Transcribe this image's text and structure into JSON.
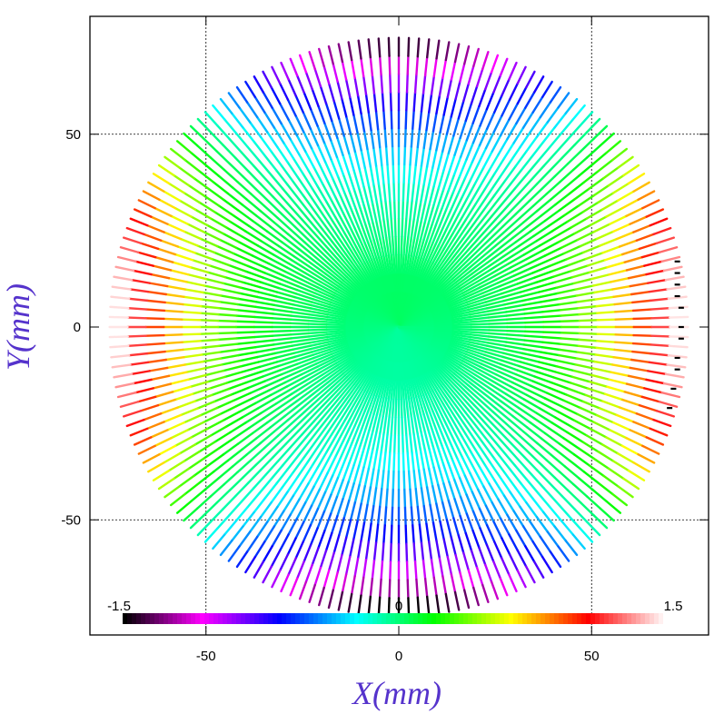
{
  "chart_data": {
    "type": "scatter",
    "title": "",
    "xlabel": "X(mm)",
    "ylabel": "Y(mm)",
    "xlim": [
      -80,
      80
    ],
    "ylim": [
      -80,
      80
    ],
    "grid": true,
    "colors": {
      "axis_title": "#5533cc",
      "grid": "#000000"
    },
    "xticks": [
      {
        "value": -50,
        "label": "-50"
      },
      {
        "value": 0,
        "label": "0"
      },
      {
        "value": 50,
        "label": "50"
      }
    ],
    "yticks": [
      {
        "value": 50,
        "label": "50"
      },
      {
        "value": 0,
        "label": "0"
      },
      {
        "value": -50,
        "label": "-50"
      }
    ],
    "pattern": {
      "description_free": true,
      "radial_line_count": 180,
      "max_radius": 75,
      "min_radius": 0
    },
    "colorbar": {
      "min": -1.5,
      "mid": 0,
      "max": 1.5,
      "min_label": "-1.5",
      "mid_label": "0",
      "max_label": "1.5",
      "stops": [
        "#000000",
        "#ff00ff",
        "#0000ff",
        "#00ffff",
        "#00ff00",
        "#ffff00",
        "#ff0000",
        "#ffffff"
      ]
    },
    "black_markers": [
      [
        72,
        17
      ],
      [
        72,
        14
      ],
      [
        72,
        11
      ],
      [
        72,
        8
      ],
      [
        73,
        5
      ],
      [
        73,
        0
      ],
      [
        73,
        -3
      ],
      [
        72,
        -8
      ],
      [
        72,
        -11
      ],
      [
        71,
        -16
      ],
      [
        70,
        -21
      ]
    ]
  }
}
